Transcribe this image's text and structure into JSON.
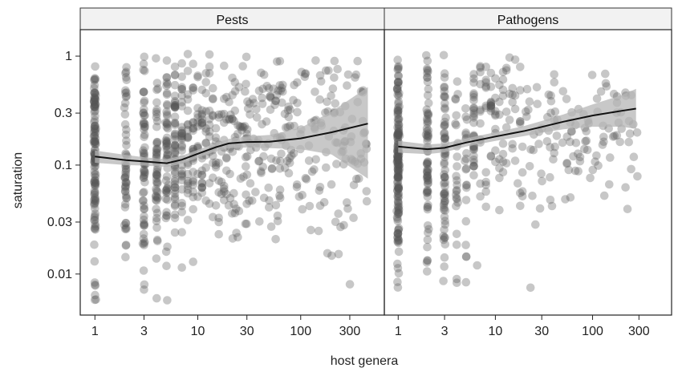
{
  "chart_data": {
    "type": "scatter",
    "x_scale": "log",
    "y_scale": "log",
    "xlabel": "host genera",
    "ylabel": "saturation",
    "x_ticks": [
      1,
      3,
      10,
      30,
      100,
      300
    ],
    "x_tick_labels": [
      "1",
      "3",
      "10",
      "30",
      "100",
      "300"
    ],
    "y_ticks": [
      0.01,
      0.03,
      0.1,
      0.3,
      1
    ],
    "y_tick_labels": [
      "0.01",
      "0.03",
      "0.1",
      "0.3",
      "1"
    ],
    "xlim": [
      0.72,
      650
    ],
    "ylim": [
      0.0042,
      1.75
    ],
    "grid": false,
    "point_color": "#555555",
    "trend_color": "#111111",
    "band_color": "#b5b5b5",
    "panels": [
      {
        "name": "Pests",
        "trend": {
          "x": [
            1,
            2,
            3,
            5,
            7,
            10,
            15,
            20,
            30,
            50,
            100,
            200,
            450
          ],
          "y": [
            0.12,
            0.111,
            0.108,
            0.104,
            0.112,
            0.127,
            0.146,
            0.158,
            0.163,
            0.164,
            0.176,
            0.2,
            0.24
          ],
          "lower": [
            0.105,
            0.1,
            0.099,
            0.096,
            0.103,
            0.117,
            0.134,
            0.143,
            0.145,
            0.143,
            0.14,
            0.125,
            0.075
          ],
          "upper": [
            0.136,
            0.124,
            0.118,
            0.113,
            0.122,
            0.138,
            0.159,
            0.174,
            0.183,
            0.189,
            0.22,
            0.31,
            0.52
          ]
        }
      },
      {
        "name": "Pathogens",
        "trend": {
          "x": [
            1,
            2,
            3,
            5,
            10,
            20,
            30,
            50,
            100,
            200,
            280
          ],
          "y": [
            0.148,
            0.14,
            0.144,
            0.161,
            0.183,
            0.206,
            0.224,
            0.25,
            0.285,
            0.315,
            0.33
          ],
          "lower": [
            0.13,
            0.126,
            0.131,
            0.148,
            0.167,
            0.185,
            0.198,
            0.213,
            0.225,
            0.225,
            0.215
          ],
          "upper": [
            0.167,
            0.155,
            0.158,
            0.176,
            0.2,
            0.229,
            0.254,
            0.292,
            0.36,
            0.44,
            0.5
          ]
        }
      }
    ]
  }
}
